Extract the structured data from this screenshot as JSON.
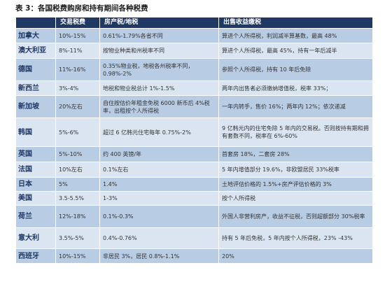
{
  "caption": "表 3：各国税费购房和持有期间各种税费",
  "headers": [
    "",
    "交易税费",
    "房产税/地税",
    "出售收益缴税"
  ],
  "rows": [
    {
      "country": "加拿大",
      "buy": "10%-15%",
      "hold": "0.61%-1.79%各省不同",
      "sell": "算进个人所得税，利润减半算基数，最高 48%"
    },
    {
      "country": "澳大利亚",
      "buy": "8%-11%",
      "hold": "按物业种类和州税率不同",
      "sell": "算进个人所得税，最高 45%，持有一年后减半"
    },
    {
      "country": "德国",
      "buy": "11%-16%",
      "hold": "0.35%物业税，地税各州税率不同，0.98%-2%",
      "sell": "参照个人所得税，持有 10 年后免除"
    },
    {
      "country": "新西兰",
      "buy": "3%-4%",
      "hold": "地税和物业税总计 1%-1.5%",
      "sell": "两年内出售者必须缴纳增值税，税率 33%；"
    },
    {
      "country": "新加坡",
      "buy": "20%左右",
      "hold": "自住按估价年租金免税 6000 新币后 4%税率，出租按个人所得税",
      "sell": "一年内转手，售价 16%；两年内 12%；依次递减"
    },
    {
      "country": "韩国",
      "buy": "5%-6%",
      "hold": "超过 6 亿韩元住宅每年 0.75%-2%",
      "sell": "9 亿韩元内的住宅免除 5 年内的交易税。否则按持有期和拥有套数不同，税率在 6%-60%"
    },
    {
      "country": "英国",
      "buy": "5%-10%",
      "hold": "约 400 英镑/年",
      "sell": "首套房 18%，二套房 28%"
    },
    {
      "country": "法国",
      "buy": "10%左右",
      "hold": "0.1%左右",
      "sell": "5 年内增值部分 19.6%，非欧盟居民 33%税率"
    },
    {
      "country": "日本",
      "buy": "5%",
      "hold": "1.4%",
      "sell": "土地评估价格的 1.5%+房产评估价格的 3%"
    },
    {
      "country": "美国",
      "buy": "3.5-5.5%",
      "hold": "1-3%",
      "sell": "按个人所得税"
    },
    {
      "country": "荷兰",
      "buy": "12%-18%",
      "hold": "0.1%-0.3%",
      "sell": "外国人非营利房产，收益不征税，否则超额部分 30%税率"
    },
    {
      "country": "意大利",
      "buy": "3.5%-5%",
      "hold": "0.4%-0.76%",
      "sell": "持有 5 年后免税，5 年内按个人所得税，23% -43%"
    },
    {
      "country": "西班牙",
      "buy": "10%-15%",
      "hold": "非居民 3%，居民 0.8%-1.1%",
      "sell": "20%"
    }
  ]
}
